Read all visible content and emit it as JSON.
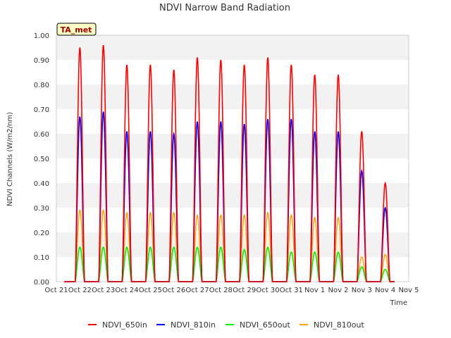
{
  "chart_data": {
    "type": "line",
    "title": "NDVI Narrow Band Radiation",
    "xlabel": "Time",
    "ylabel": "NDVI Channels (W/m2/nm)",
    "ylim": [
      0,
      1.0
    ],
    "yticks": [
      "0.00",
      "0.10",
      "0.20",
      "0.30",
      "0.40",
      "0.50",
      "0.60",
      "0.70",
      "0.80",
      "0.90",
      "1.00"
    ],
    "xlim": [
      0,
      15
    ],
    "xticks": [
      "Oct 21",
      "Oct 22",
      "Oct 23",
      "Oct 24",
      "Oct 25",
      "Oct 26",
      "Oct 27",
      "Oct 28",
      "Oct 29",
      "Oct 30",
      "Oct 31",
      "Nov 1",
      "Nov 2",
      "Nov 3",
      "Nov 4",
      "Nov 5"
    ],
    "grid": "horizontal bands",
    "legend_position": "bottom",
    "annotation": "TA_met",
    "series": [
      {
        "name": "NDVI_650in",
        "color": "#ff0000",
        "peaks": [
          0.95,
          0.96,
          0.88,
          0.88,
          0.86,
          0.91,
          0.9,
          0.88,
          0.91,
          0.88,
          0.84,
          0.84,
          0.61,
          0.4
        ]
      },
      {
        "name": "NDVI_810in",
        "color": "#0000ff",
        "peaks": [
          0.67,
          0.69,
          0.61,
          0.61,
          0.6,
          0.65,
          0.65,
          0.64,
          0.66,
          0.66,
          0.61,
          0.61,
          0.45,
          0.3
        ]
      },
      {
        "name": "NDVI_650out",
        "color": "#00ee00",
        "peaks": [
          0.14,
          0.14,
          0.14,
          0.14,
          0.14,
          0.14,
          0.14,
          0.13,
          0.14,
          0.12,
          0.12,
          0.12,
          0.06,
          0.05
        ]
      },
      {
        "name": "NDVI_810out",
        "color": "#ffa500",
        "peaks": [
          0.29,
          0.29,
          0.28,
          0.28,
          0.28,
          0.27,
          0.27,
          0.27,
          0.28,
          0.27,
          0.26,
          0.26,
          0.1,
          0.11
        ]
      }
    ]
  }
}
